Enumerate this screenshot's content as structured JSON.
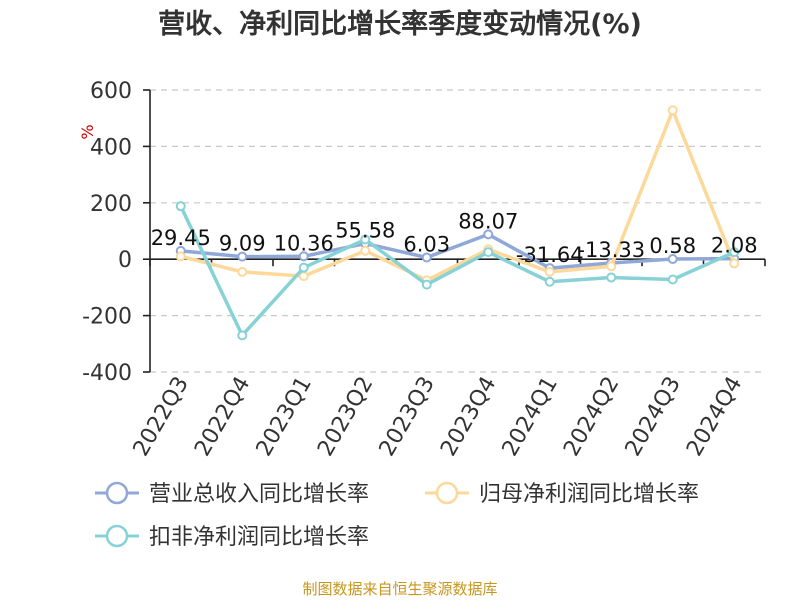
{
  "chart_data": {
    "type": "line",
    "title": "营收、净利同比增长率季度变动情况(%)",
    "unit": "%",
    "categories": [
      "2022Q3",
      "2022Q4",
      "2023Q1",
      "2023Q2",
      "2023Q3",
      "2023Q4",
      "2024Q1",
      "2024Q2",
      "2024Q3",
      "2024Q4"
    ],
    "ylim": [
      -400,
      600
    ],
    "yticks": [
      600,
      400,
      200,
      0,
      -200,
      -400
    ],
    "grid": true,
    "legend_position": "bottom",
    "series": [
      {
        "name": "营业总收入同比增长率",
        "color": "#8fa8d8",
        "values": [
          29.45,
          9.09,
          10.36,
          55.58,
          6.03,
          88.07,
          -31.64,
          -13.33,
          0.58,
          2.08
        ],
        "labels": [
          "29.45",
          "9.09",
          "10.36",
          "55.58",
          "6.03",
          "88.07",
          "-31.64",
          "-13.33",
          "0.58",
          "2.08"
        ]
      },
      {
        "name": "归母净利润同比增长率",
        "color": "#fcd99a",
        "values": [
          10,
          -45,
          -60,
          30,
          -75,
          35,
          -45,
          -25,
          528,
          -15
        ]
      },
      {
        "name": "扣非净利润同比增长率",
        "color": "#86d2d6",
        "values": [
          188,
          -270,
          -30,
          70,
          -90,
          25,
          -80,
          -65,
          -72,
          25
        ]
      }
    ]
  },
  "source": "制图数据来自恒生聚源数据库"
}
